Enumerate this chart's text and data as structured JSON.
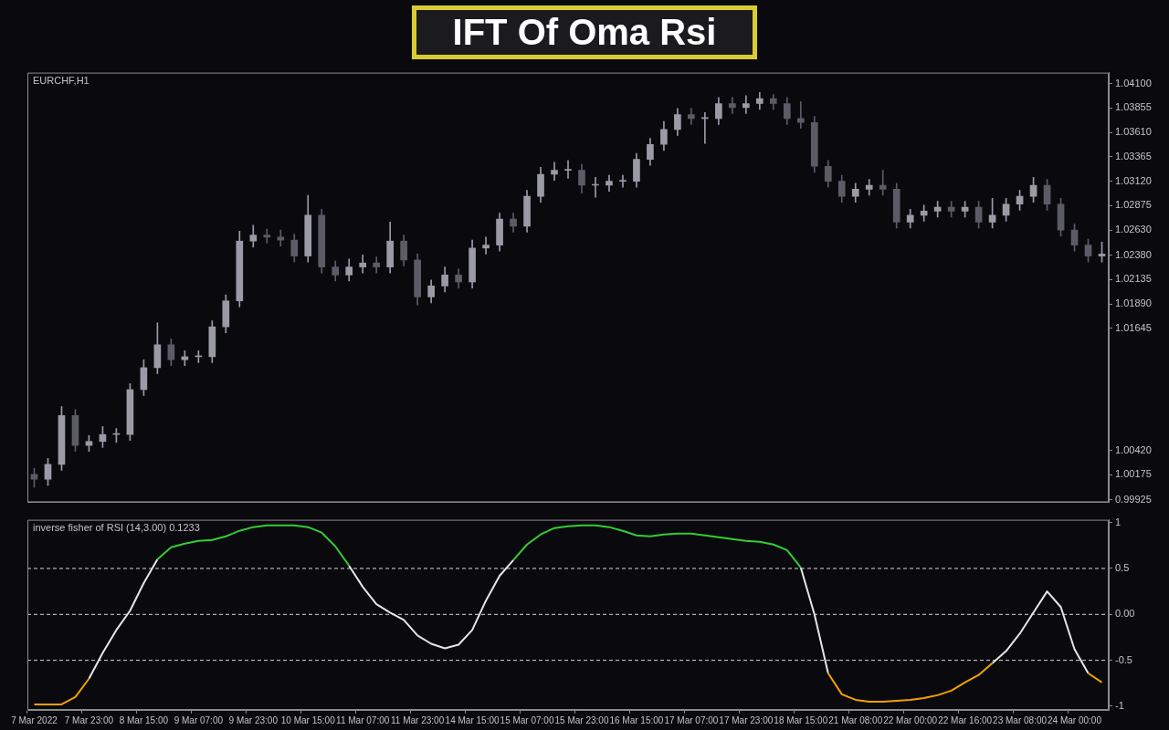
{
  "chart_data": [
    {
      "type": "candlestick",
      "title": "IFT Of Oma Rsi",
      "subtitle": "EURCHF,H1",
      "colors": [
        "#5c5c66",
        "#9b9ba6",
        "#9b9ba6",
        "#5c5c66",
        "#9b9ba6",
        "#9b9ba6",
        "#9b9ba6",
        "#9b9ba6",
        "#9b9ba6",
        "#9b9ba6",
        "#5c5c66",
        "#9b9ba6",
        "#9b9ba6",
        "#9b9ba6",
        "#9b9ba6",
        "#9b9ba6",
        "#9b9ba6",
        "#5c5c66",
        "#5c5c66",
        "#5c5c66",
        "#9b9ba6",
        "#5c5c66",
        "#5c5c66",
        "#9b9ba6",
        "#9b9ba6",
        "#5c5c66",
        "#9b9ba6",
        "#5c5c66",
        "#5c5c66",
        "#9b9ba6",
        "#9b9ba6",
        "#5c5c66",
        "#9b9ba6",
        "#9b9ba6",
        "#9b9ba6",
        "#5c5c66",
        "#9b9ba6",
        "#9b9ba6",
        "#9b9ba6",
        "#9b9ba6",
        "#5c5c66",
        "#9b9ba6",
        "#9b9ba6",
        "#9b9ba6",
        "#9b9ba6",
        "#9b9ba6",
        "#9b9ba6",
        "#9b9ba6",
        "#5c5c66",
        "#9b9ba6",
        "#9b9ba6",
        "#5c5c66",
        "#9b9ba6",
        "#9b9ba6",
        "#5c5c66",
        "#5c5c66",
        "#5c5c66",
        "#5c5c66",
        "#5c5c66",
        "#5c5c66",
        "#9b9ba6",
        "#9b9ba6",
        "#5c5c66",
        "#5c5c66",
        "#9b9ba6",
        "#9b9ba6",
        "#9b9ba6",
        "#5c5c66",
        "#9b9ba6",
        "#5c5c66",
        "#9b9ba6",
        "#9b9ba6",
        "#9b9ba6",
        "#9b9ba6",
        "#5c5c66",
        "#5c5c66",
        "#5c5c66",
        "#5c5c66",
        "#9b9ba6"
      ],
      "tick_labels": "y",
      "ohlc": [
        [
          1.0018,
          1.0024,
          1.0005,
          1.0013
        ],
        [
          1.0013,
          1.0034,
          1.0007,
          1.0028
        ],
        [
          1.0028,
          1.0086,
          1.0022,
          1.0077
        ],
        [
          1.0077,
          1.0083,
          1.0041,
          1.0047
        ],
        [
          1.0047,
          1.0057,
          1.0041,
          1.0051
        ],
        [
          1.0051,
          1.0066,
          1.0045,
          1.0058
        ],
        [
          1.0058,
          1.0064,
          1.005,
          1.0058
        ],
        [
          1.0058,
          1.0109,
          1.0052,
          1.0103
        ],
        [
          1.0103,
          1.0133,
          1.0097,
          1.0125
        ],
        [
          1.0125,
          1.017,
          1.0119,
          1.0148
        ],
        [
          1.0148,
          1.0154,
          1.0127,
          1.0133
        ],
        [
          1.0133,
          1.0142,
          1.0127,
          1.0136
        ],
        [
          1.0136,
          1.0142,
          1.013,
          1.0136
        ],
        [
          1.0136,
          1.0172,
          1.013,
          1.0166
        ],
        [
          1.0166,
          1.0198,
          1.016,
          1.0192
        ],
        [
          1.0192,
          1.0262,
          1.0186,
          1.0252
        ],
        [
          1.0252,
          1.0268,
          1.0246,
          1.0258
        ],
        [
          1.0258,
          1.0264,
          1.025,
          1.0256
        ],
        [
          1.0256,
          1.0263,
          1.0247,
          1.0253
        ],
        [
          1.0253,
          1.0259,
          1.0231,
          1.0237
        ],
        [
          1.0237,
          1.0298,
          1.0231,
          1.0278
        ],
        [
          1.0278,
          1.0284,
          1.022,
          1.0226
        ],
        [
          1.0226,
          1.0232,
          1.0212,
          1.0218
        ],
        [
          1.0218,
          1.0234,
          1.0212,
          1.0226
        ],
        [
          1.0226,
          1.0238,
          1.022,
          1.023
        ],
        [
          1.023,
          1.0236,
          1.022,
          1.0226
        ],
        [
          1.0226,
          1.0271,
          1.022,
          1.0252
        ],
        [
          1.0252,
          1.0258,
          1.0227,
          1.0233
        ],
        [
          1.0233,
          1.0239,
          1.0188,
          1.0196
        ],
        [
          1.0196,
          1.0213,
          1.019,
          1.0207
        ],
        [
          1.0207,
          1.0226,
          1.0201,
          1.0218
        ],
        [
          1.0218,
          1.0224,
          1.0205,
          1.0211
        ],
        [
          1.0211,
          1.0253,
          1.0205,
          1.0245
        ],
        [
          1.0245,
          1.0256,
          1.0239,
          1.0248
        ],
        [
          1.0248,
          1.028,
          1.0242,
          1.0274
        ],
        [
          1.0274,
          1.028,
          1.0261,
          1.0267
        ],
        [
          1.0267,
          1.0303,
          1.0261,
          1.0297
        ],
        [
          1.0297,
          1.0326,
          1.0291,
          1.0319
        ],
        [
          1.0319,
          1.0331,
          1.0313,
          1.0323
        ],
        [
          1.0323,
          1.0333,
          1.0315,
          1.0323
        ],
        [
          1.0323,
          1.0329,
          1.03,
          1.0308
        ],
        [
          1.0308,
          1.0316,
          1.0296,
          1.0308
        ],
        [
          1.0308,
          1.0318,
          1.0302,
          1.0312
        ],
        [
          1.0312,
          1.0318,
          1.0306,
          1.0312
        ],
        [
          1.0312,
          1.034,
          1.0306,
          1.0334
        ],
        [
          1.0334,
          1.0355,
          1.0328,
          1.0349
        ],
        [
          1.0349,
          1.0372,
          1.0343,
          1.0364
        ],
        [
          1.0364,
          1.0385,
          1.0358,
          1.0379
        ],
        [
          1.0379,
          1.0385,
          1.0369,
          1.0375
        ],
        [
          1.0375,
          1.0381,
          1.035,
          1.0375
        ],
        [
          1.0375,
          1.0396,
          1.0369,
          1.039
        ],
        [
          1.039,
          1.0396,
          1.038,
          1.0386
        ],
        [
          1.0386,
          1.0398,
          1.038,
          1.039
        ],
        [
          1.039,
          1.0401,
          1.0384,
          1.0395
        ],
        [
          1.0395,
          1.0399,
          1.0384,
          1.039
        ],
        [
          1.039,
          1.0396,
          1.0369,
          1.0375
        ],
        [
          1.0375,
          1.0392,
          1.0365,
          1.0371
        ],
        [
          1.0371,
          1.0377,
          1.0321,
          1.0327
        ],
        [
          1.0327,
          1.0333,
          1.0306,
          1.0312
        ],
        [
          1.0312,
          1.0318,
          1.0291,
          1.0297
        ],
        [
          1.0297,
          1.031,
          1.0291,
          1.0304
        ],
        [
          1.0304,
          1.0314,
          1.0298,
          1.0308
        ],
        [
          1.0308,
          1.0323,
          1.0298,
          1.0304
        ],
        [
          1.0304,
          1.031,
          1.0265,
          1.0271
        ],
        [
          1.0271,
          1.0284,
          1.0265,
          1.0278
        ],
        [
          1.0278,
          1.0288,
          1.0272,
          1.0282
        ],
        [
          1.0282,
          1.0292,
          1.0276,
          1.0286
        ],
        [
          1.0286,
          1.0292,
          1.0276,
          1.0282
        ],
        [
          1.0282,
          1.0292,
          1.0276,
          1.0286
        ],
        [
          1.0286,
          1.0292,
          1.0265,
          1.0271
        ],
        [
          1.0271,
          1.0295,
          1.0265,
          1.0278
        ],
        [
          1.0278,
          1.0295,
          1.0272,
          1.0289
        ],
        [
          1.0289,
          1.0303,
          1.0283,
          1.0297
        ],
        [
          1.0297,
          1.0316,
          1.0291,
          1.0308
        ],
        [
          1.0308,
          1.0314,
          1.0283,
          1.0289
        ],
        [
          1.0289,
          1.0295,
          1.0257,
          1.0263
        ],
        [
          1.0263,
          1.0269,
          1.0242,
          1.0248
        ],
        [
          1.0248,
          1.0254,
          1.0231,
          1.0237
        ],
        [
          1.0237,
          1.0251,
          1.0231,
          1.0239
        ]
      ],
      "ylim": [
        0.999,
        1.0421
      ],
      "yticks": [
        0.99925,
        1.00175,
        {
          "value": 1.0042,
          "label": "1.00420"
        },
        1.01645,
        {
          "value": 1.0189,
          "label": "1.01890"
        },
        1.02135,
        {
          "value": 1.0238,
          "label": "1.02380"
        },
        {
          "value": 1.0263,
          "label": "1.02630"
        },
        1.02875,
        {
          "value": 1.0312,
          "label": "1.03120"
        },
        1.03365,
        {
          "value": 1.0361,
          "label": "1.03610"
        },
        1.03855,
        {
          "value": 1.041,
          "label": "1.04100"
        }
      ]
    },
    {
      "type": "line",
      "title": "inverse fisher of RSI (14,3.00) 0.1233",
      "categories": [
        "7 Mar 2022",
        null,
        null,
        null,
        "7 Mar 23:00",
        null,
        null,
        null,
        "8 Mar 15:00",
        null,
        null,
        null,
        "9 Mar 07:00",
        null,
        null,
        null,
        "9 Mar 23:00",
        null,
        null,
        null,
        "10 Mar 15:00",
        null,
        null,
        null,
        "11 Mar 07:00",
        null,
        null,
        null,
        "11 Mar 23:00",
        null,
        null,
        null,
        "14 Mar 15:00",
        null,
        null,
        null,
        "15 Mar 07:00",
        null,
        null,
        null,
        "15 Mar 23:00",
        null,
        null,
        null,
        "16 Mar 15:00",
        null,
        null,
        null,
        "17 Mar 07:00",
        null,
        null,
        null,
        "17 Mar 23:00",
        null,
        null,
        null,
        "18 Mar 15:00",
        null,
        null,
        null,
        "21 Mar 08:00",
        null,
        null,
        null,
        "22 Mar 00:00",
        null,
        null,
        null,
        "22 Mar 16:00",
        null,
        null,
        null,
        "23 Mar 08:00",
        null,
        null,
        null,
        "24 Mar 00:00",
        null,
        null
      ],
      "series": [
        {
          "color": "#f5a000",
          "values": [
            -0.98,
            -0.98,
            -0.98,
            -0.9,
            -0.7,
            null,
            null,
            null,
            null,
            null,
            null,
            null,
            null,
            null,
            null,
            null,
            null,
            null,
            null,
            null,
            null,
            null,
            null,
            null,
            null,
            null,
            null,
            null,
            null,
            null,
            null,
            null,
            null,
            null,
            null,
            null,
            null,
            null,
            null,
            null,
            null,
            null,
            null,
            null,
            null,
            null,
            null,
            null,
            null,
            null,
            null,
            null,
            null,
            null,
            null,
            null,
            null,
            null,
            -0.64,
            -0.87,
            -0.93,
            -0.95,
            -0.95,
            -0.94,
            -0.93,
            -0.91,
            -0.88,
            -0.83,
            -0.74,
            -0.66,
            -0.53,
            null,
            null,
            null,
            null,
            null,
            null,
            -0.64,
            -0.74
          ]
        },
        {
          "color": "#33cc33",
          "values": [
            null,
            null,
            null,
            null,
            null,
            null,
            null,
            null,
            null,
            0.6,
            0.73,
            0.77,
            0.8,
            0.81,
            0.85,
            0.91,
            0.95,
            0.97,
            0.97,
            0.97,
            0.95,
            0.89,
            0.74,
            0.53,
            null,
            null,
            null,
            null,
            null,
            null,
            null,
            null,
            null,
            null,
            null,
            0.59,
            0.76,
            0.87,
            0.94,
            0.96,
            0.97,
            0.97,
            0.95,
            0.91,
            0.86,
            0.85,
            0.87,
            0.88,
            0.88,
            0.86,
            0.84,
            0.82,
            0.8,
            0.79,
            0.76,
            0.7,
            0.51,
            null,
            null,
            null,
            null,
            null,
            null,
            null,
            null,
            null,
            null,
            null,
            null,
            null,
            null,
            null,
            null,
            null,
            null,
            null,
            null,
            null,
            null
          ]
        },
        {
          "color": "#e6e6e6",
          "values": [
            null,
            null,
            null,
            null,
            -0.7,
            -0.42,
            -0.17,
            0.04,
            0.34,
            0.6,
            null,
            null,
            null,
            null,
            null,
            null,
            null,
            null,
            null,
            null,
            null,
            null,
            null,
            0.53,
            0.3,
            0.11,
            0.02,
            -0.06,
            -0.23,
            -0.32,
            -0.37,
            -0.33,
            -0.17,
            0.15,
            0.42,
            0.59,
            null,
            null,
            null,
            null,
            null,
            null,
            null,
            null,
            null,
            null,
            null,
            null,
            null,
            null,
            null,
            null,
            null,
            null,
            null,
            null,
            0.51,
            0.0,
            -0.64,
            null,
            null,
            null,
            null,
            null,
            null,
            null,
            null,
            null,
            null,
            null,
            -0.53,
            -0.4,
            -0.21,
            0.02,
            0.25,
            0.08,
            -0.38,
            -0.64,
            null
          ]
        }
      ],
      "ylim": [
        -1.04,
        1.03
      ],
      "yticks": [
        -1,
        -0.5,
        {
          "value": 0,
          "label": "0.00"
        },
        0.5,
        1
      ],
      "ref_lines": [
        {
          "axis": "y",
          "value": 0.5,
          "color": "#d8d8d8",
          "line_style": "dashed"
        },
        {
          "axis": "y",
          "value": 0,
          "color": "#d8d8d8",
          "line_style": "dashed"
        },
        {
          "axis": "y",
          "value": -0.5,
          "color": "#d8d8d8",
          "line_style": "dashed"
        }
      ]
    }
  ]
}
